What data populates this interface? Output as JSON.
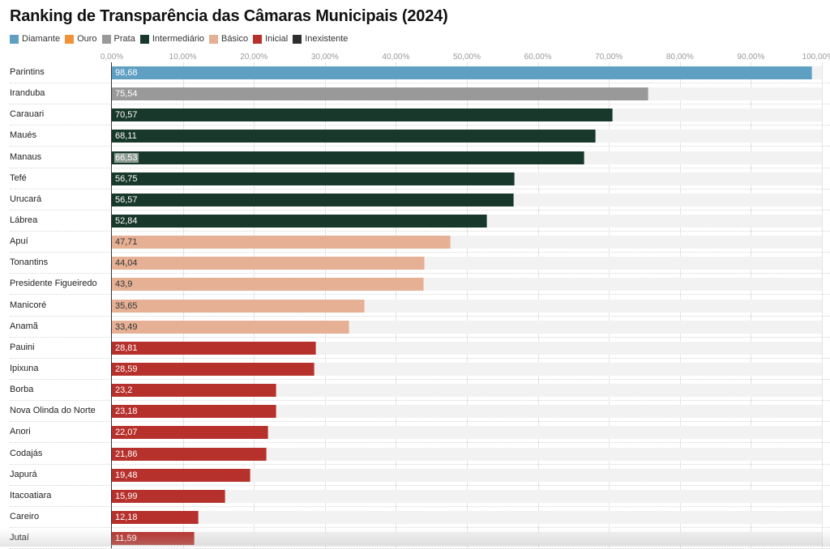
{
  "chart_data": {
    "type": "bar",
    "orientation": "horizontal",
    "title": "Ranking de Transparência das Câmaras Municipais (2024)",
    "xlabel": "",
    "ylabel": "",
    "xlim": [
      0,
      100
    ],
    "grid": true,
    "legend_position": "top-left",
    "x_ticks": [
      "0,00%",
      "10,00%",
      "20,00%",
      "30,00%",
      "40,00%",
      "50,00%",
      "60,00%",
      "70,00%",
      "80,00%",
      "90,00%",
      "100,00%"
    ],
    "legend": [
      {
        "name": "Diamante",
        "color": "#5f9fc2"
      },
      {
        "name": "Ouro",
        "color": "#f0923a"
      },
      {
        "name": "Prata",
        "color": "#999999"
      },
      {
        "name": "Intermediário",
        "color": "#17382a"
      },
      {
        "name": "Básico",
        "color": "#e6b095"
      },
      {
        "name": "Inicial",
        "color": "#b7312c"
      },
      {
        "name": "Inexistente",
        "color": "#2e2e2e"
      }
    ],
    "rows": [
      {
        "category": "Parintins",
        "value": 98.68,
        "label": "98,68",
        "level": "Diamante"
      },
      {
        "category": "Iranduba",
        "value": 75.54,
        "label": "75,54",
        "level": "Prata"
      },
      {
        "category": "Carauari",
        "value": 70.57,
        "label": "70,57",
        "level": "Intermediário"
      },
      {
        "category": "Maués",
        "value": 68.11,
        "label": "68,11",
        "level": "Intermediário"
      },
      {
        "category": "Manaus",
        "value": 66.53,
        "label": "66,53",
        "level": "Intermediário",
        "highlighted": true
      },
      {
        "category": "Tefé",
        "value": 56.75,
        "label": "56,75",
        "level": "Intermediário"
      },
      {
        "category": "Urucará",
        "value": 56.57,
        "label": "56,57",
        "level": "Intermediário"
      },
      {
        "category": "Lábrea",
        "value": 52.84,
        "label": "52,84",
        "level": "Intermediário"
      },
      {
        "category": "Apuí",
        "value": 47.71,
        "label": "47,71",
        "level": "Básico"
      },
      {
        "category": "Tonantins",
        "value": 44.04,
        "label": "44,04",
        "level": "Básico"
      },
      {
        "category": "Presidente Figueiredo",
        "value": 43.9,
        "label": "43,9",
        "level": "Básico"
      },
      {
        "category": "Manicoré",
        "value": 35.65,
        "label": "35,65",
        "level": "Básico"
      },
      {
        "category": "Anamã",
        "value": 33.49,
        "label": "33,49",
        "level": "Básico"
      },
      {
        "category": "Pauini",
        "value": 28.81,
        "label": "28,81",
        "level": "Inicial"
      },
      {
        "category": "Ipixuna",
        "value": 28.59,
        "label": "28,59",
        "level": "Inicial"
      },
      {
        "category": "Borba",
        "value": 23.2,
        "label": "23,2",
        "level": "Inicial"
      },
      {
        "category": "Nova Olinda do Norte",
        "value": 23.18,
        "label": "23,18",
        "level": "Inicial"
      },
      {
        "category": "Anori",
        "value": 22.07,
        "label": "22,07",
        "level": "Inicial"
      },
      {
        "category": "Codajás",
        "value": 21.86,
        "label": "21,86",
        "level": "Inicial"
      },
      {
        "category": "Japurá",
        "value": 19.48,
        "label": "19,48",
        "level": "Inicial"
      },
      {
        "category": "Itacoatiara",
        "value": 15.99,
        "label": "15,99",
        "level": "Inicial"
      },
      {
        "category": "Careiro",
        "value": 12.18,
        "label": "12,18",
        "level": "Inicial"
      },
      {
        "category": "Jutaí",
        "value": 11.59,
        "label": "11,59",
        "level": "Inicial"
      }
    ],
    "label_text_colors": {
      "Diamante": "#ffffff",
      "Prata": "#ffffff",
      "Intermediário": "#ffffff",
      "Básico": "#333333",
      "Inicial": "#ffffff"
    }
  }
}
